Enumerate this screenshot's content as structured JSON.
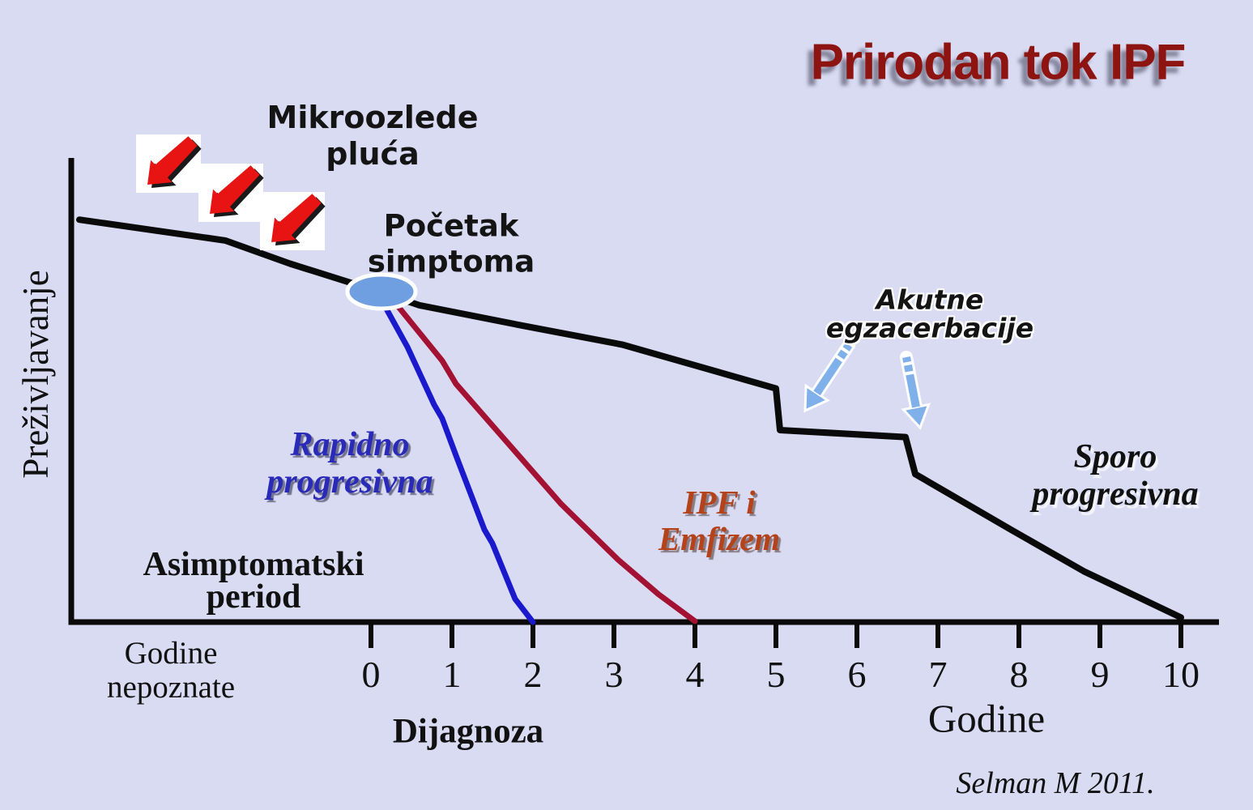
{
  "slide": {
    "title": "Prirodan tok IPF",
    "citation": "Selman M 2011.",
    "background_color": "#d9dbf3",
    "title_color": "#8e1412"
  },
  "labels": {
    "micro_injuries": "Mikroozlede\npluća",
    "symptom_onset": "Početak\nsimptoma",
    "acute_exacerbations": "Akutne\negzacerbacije",
    "rapid_progressive": "Rapidno\nprogresivna",
    "ipf_emphysema": "IPF i\nEmfizem",
    "slow_progressive": "Sporo\nprogresivna",
    "asymptomatic_period": "Asimptomatski\nperiod",
    "unknown_years": "Godine\nnepoznate",
    "diagnosis": "Dijagnoza",
    "years_axis": "Godine",
    "survival_axis": "Preživljavanje"
  },
  "colors": {
    "curve_black": "#0a0a0a",
    "curve_blue": "#1a1acc",
    "curve_red": "#a31133",
    "ellipse_fill": "#6f9fe0",
    "blue_arrow": "#7fb0ea",
    "red_arrow": "#e81414",
    "red_arrow_shadow": "#1a1a1a"
  },
  "chart_data": {
    "type": "line",
    "title": "Prirodan tok IPF",
    "xlabel": "Godine",
    "ylabel": "Preživljavanje",
    "x_axis_left_note": "Godine nepoznate",
    "x_tick_labels": [
      "0",
      "1",
      "2",
      "3",
      "4",
      "5",
      "6",
      "7",
      "8",
      "9",
      "10"
    ],
    "xlim": [
      -3.7,
      10.5
    ],
    "ylim": [
      0,
      100
    ],
    "grid": false,
    "legend_position": "inline-annotations",
    "series": [
      {
        "name": "Prirodan tok / Sporo progresivna",
        "color": "#0a0a0a",
        "width": 8,
        "points": [
          [
            -3.6,
            87
          ],
          [
            -1.8,
            82.5
          ],
          [
            -1.0,
            77.5
          ],
          [
            0,
            72
          ],
          [
            0.6,
            68.5
          ],
          [
            1.9,
            64
          ],
          [
            3.1,
            60
          ],
          [
            5.0,
            50.5
          ],
          [
            5.05,
            41.5
          ],
          [
            6.6,
            40
          ],
          [
            6.72,
            32
          ],
          [
            7.9,
            20
          ],
          [
            8.8,
            11
          ],
          [
            9.4,
            6
          ],
          [
            10,
            1
          ]
        ]
      },
      {
        "name": "Rapidno progresivna",
        "color": "#1a1acc",
        "width": 7,
        "points": [
          [
            0.15,
            69
          ],
          [
            0.45,
            59.5
          ],
          [
            0.78,
            47
          ],
          [
            0.88,
            44
          ],
          [
            1.05,
            36
          ],
          [
            1.4,
            20
          ],
          [
            1.5,
            17
          ],
          [
            1.78,
            5
          ],
          [
            2.0,
            0
          ]
        ]
      },
      {
        "name": "IPF i Emfizem",
        "color": "#a31133",
        "width": 7,
        "points": [
          [
            0.3,
            69
          ],
          [
            0.88,
            56.5
          ],
          [
            1.05,
            51.5
          ],
          [
            1.65,
            39.5
          ],
          [
            2.35,
            25.5
          ],
          [
            3.05,
            13.5
          ],
          [
            3.55,
            6
          ],
          [
            4.0,
            0.2
          ]
        ]
      }
    ],
    "events": [
      {
        "label": "Mikroozlede pluća",
        "x_range": [
          -2.9,
          -0.6
        ]
      },
      {
        "label": "Početak simptoma",
        "x": 0,
        "y": 71.5
      },
      {
        "label": "Dijagnoza",
        "x": 0
      },
      {
        "label": "Akutne egzacerbacije",
        "x_positions": [
          5.0,
          6.7
        ]
      }
    ]
  }
}
